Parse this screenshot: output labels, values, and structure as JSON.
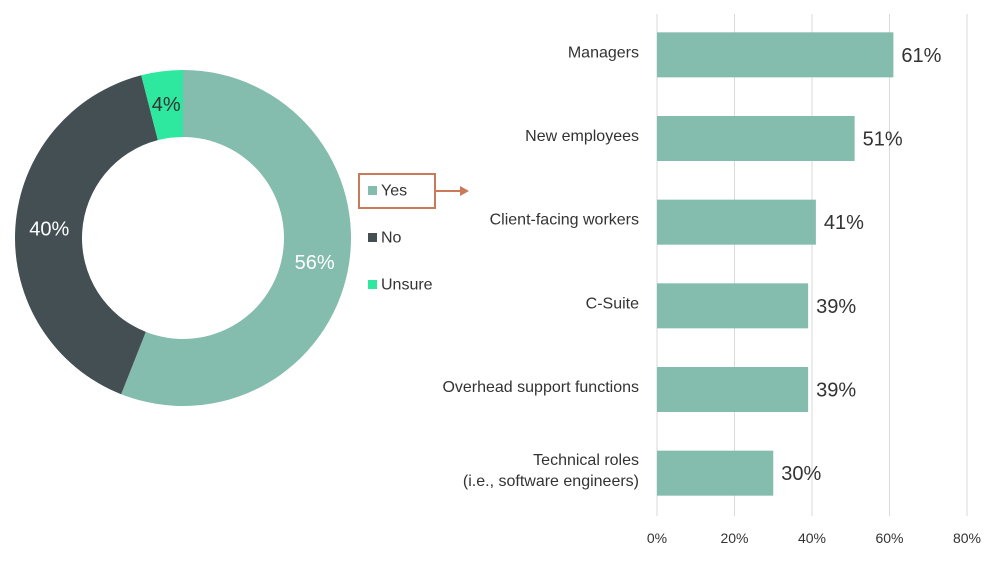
{
  "colors": {
    "yes": "#84bcad",
    "no": "#434f53",
    "unsure": "#2ee89f",
    "callout": "#c87a5a",
    "grid": "#d9d9d9",
    "text": "#333333",
    "label_light": "#ffffff"
  },
  "chart_data": [
    {
      "type": "pie",
      "variant": "donut",
      "title": "",
      "slices": [
        {
          "name": "Yes",
          "value": 56,
          "label": "56%",
          "color": "#84bcad"
        },
        {
          "name": "No",
          "value": 40,
          "label": "40%",
          "color": "#434f53"
        },
        {
          "name": "Unsure",
          "value": 4,
          "label": "4%",
          "color": "#2ee89f"
        }
      ],
      "legend": {
        "placement": "right",
        "items": [
          {
            "name": "Yes",
            "color": "#84bcad",
            "highlighted": true
          },
          {
            "name": "No",
            "color": "#434f53",
            "highlighted": false
          },
          {
            "name": "Unsure",
            "color": "#2ee89f",
            "highlighted": false
          }
        ]
      }
    },
    {
      "type": "bar",
      "orientation": "horizontal",
      "title": "",
      "xlabel": "",
      "ylabel": "",
      "categories": [
        [
          "Managers"
        ],
        [
          "New employees"
        ],
        [
          "Client-facing workers"
        ],
        [
          "C-Suite"
        ],
        [
          "Overhead support functions"
        ],
        [
          "Technical roles",
          "(i.e., software engineers)"
        ]
      ],
      "values": [
        61,
        51,
        41,
        39,
        39,
        30
      ],
      "value_labels": [
        "61%",
        "51%",
        "41%",
        "39%",
        "39%",
        "30%"
      ],
      "xlim": [
        0,
        80
      ],
      "xticks": [
        0,
        20,
        40,
        60,
        80
      ],
      "xtick_labels": [
        "0%",
        "20%",
        "40%",
        "60%",
        "80%"
      ],
      "grid": true,
      "bar_color": "#84bcad"
    }
  ]
}
